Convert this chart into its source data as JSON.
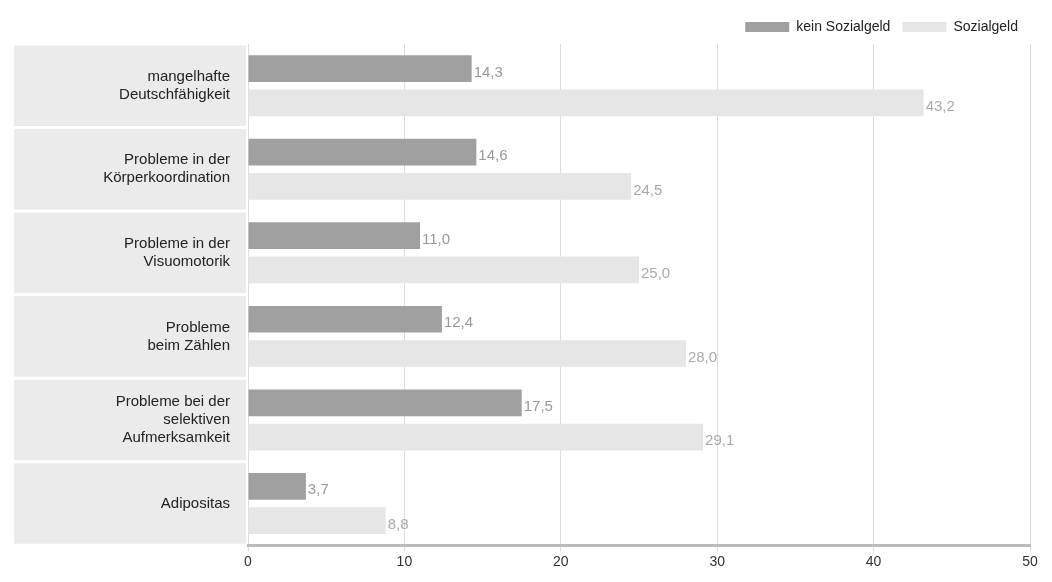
{
  "chart_data": {
    "type": "bar",
    "orientation": "horizontal",
    "categories": [
      "mangelhafte\nDeutschfähigkeit",
      "Probleme in der\nKörperkoordination",
      "Probleme in der\nVisuomotorik",
      "Probleme\nbeim Zählen",
      "Probleme bei der\nselektiven\nAufmerksamkeit",
      "Adipositas"
    ],
    "series": [
      {
        "name": "kein Sozialgeld",
        "color": "#a0a0a0",
        "values": [
          14.3,
          14.6,
          11.0,
          12.4,
          17.5,
          3.7
        ],
        "value_labels": [
          "14,3",
          "14,6",
          "11,0",
          "12,4",
          "17,5",
          "3,7"
        ]
      },
      {
        "name": "Sozialgeld",
        "color": "#e6e6e6",
        "values": [
          43.2,
          24.5,
          25.0,
          28.0,
          29.1,
          8.8
        ],
        "value_labels": [
          "43,2",
          "24,5",
          "25,0",
          "28,0",
          "29,1",
          "8,8"
        ]
      }
    ],
    "xlim": [
      0,
      50
    ],
    "xticks": [
      0,
      10,
      20,
      30,
      40,
      50
    ],
    "grid": "x",
    "legend": "top right"
  }
}
